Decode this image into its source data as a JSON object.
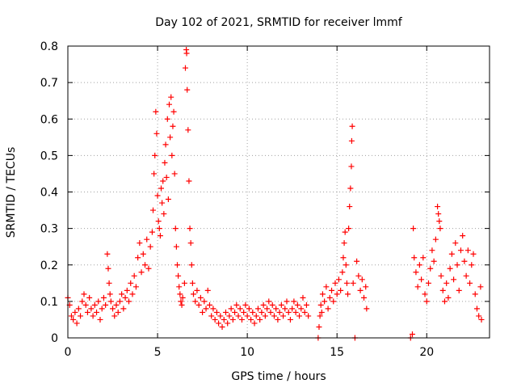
{
  "chart_data": {
    "type": "scatter",
    "title": "Day 102 of 2021, SRMTID for receiver lmmf",
    "xlabel": "GPS time / hours",
    "ylabel": "SRMTID / TECUs",
    "xlim": [
      0,
      23.5
    ],
    "ylim": [
      0,
      0.8
    ],
    "xticks": [
      0,
      5,
      10,
      15,
      20
    ],
    "yticks": [
      0,
      0.1,
      0.2,
      0.3,
      0.4,
      0.5,
      0.6,
      0.7,
      0.8
    ],
    "grid": true,
    "marker": "+",
    "color": "#ff0000",
    "series": [
      {
        "name": "SRMTID",
        "points": [
          [
            0.0,
            0.11
          ],
          [
            0.1,
            0.09
          ],
          [
            0.2,
            0.06
          ],
          [
            0.3,
            0.05
          ],
          [
            0.4,
            0.07
          ],
          [
            0.5,
            0.04
          ],
          [
            0.6,
            0.08
          ],
          [
            0.7,
            0.06
          ],
          [
            0.8,
            0.1
          ],
          [
            0.9,
            0.12
          ],
          [
            1.0,
            0.09
          ],
          [
            1.1,
            0.07
          ],
          [
            1.2,
            0.11
          ],
          [
            1.3,
            0.08
          ],
          [
            1.4,
            0.06
          ],
          [
            1.5,
            0.09
          ],
          [
            1.6,
            0.07
          ],
          [
            1.7,
            0.1
          ],
          [
            1.8,
            0.05
          ],
          [
            1.9,
            0.08
          ],
          [
            2.0,
            0.11
          ],
          [
            2.1,
            0.09
          ],
          [
            2.2,
            0.23
          ],
          [
            2.25,
            0.19
          ],
          [
            2.3,
            0.15
          ],
          [
            2.35,
            0.12
          ],
          [
            2.4,
            0.1
          ],
          [
            2.5,
            0.08
          ],
          [
            2.6,
            0.06
          ],
          [
            2.7,
            0.09
          ],
          [
            2.8,
            0.07
          ],
          [
            2.9,
            0.1
          ],
          [
            3.0,
            0.12
          ],
          [
            3.1,
            0.08
          ],
          [
            3.2,
            0.11
          ],
          [
            3.3,
            0.13
          ],
          [
            3.4,
            0.1
          ],
          [
            3.5,
            0.15
          ],
          [
            3.6,
            0.12
          ],
          [
            3.7,
            0.17
          ],
          [
            3.8,
            0.14
          ],
          [
            3.9,
            0.22
          ],
          [
            4.0,
            0.26
          ],
          [
            4.1,
            0.18
          ],
          [
            4.2,
            0.23
          ],
          [
            4.3,
            0.2
          ],
          [
            4.4,
            0.27
          ],
          [
            4.5,
            0.19
          ],
          [
            4.6,
            0.25
          ],
          [
            4.7,
            0.29
          ],
          [
            4.75,
            0.35
          ],
          [
            4.8,
            0.45
          ],
          [
            4.85,
            0.5
          ],
          [
            4.9,
            0.62
          ],
          [
            4.95,
            0.56
          ],
          [
            5.0,
            0.39
          ],
          [
            5.05,
            0.32
          ],
          [
            5.1,
            0.3
          ],
          [
            5.15,
            0.28
          ],
          [
            5.2,
            0.41
          ],
          [
            5.25,
            0.37
          ],
          [
            5.3,
            0.43
          ],
          [
            5.35,
            0.34
          ],
          [
            5.4,
            0.48
          ],
          [
            5.45,
            0.53
          ],
          [
            5.5,
            0.44
          ],
          [
            5.55,
            0.6
          ],
          [
            5.6,
            0.38
          ],
          [
            5.65,
            0.64
          ],
          [
            5.7,
            0.55
          ],
          [
            5.75,
            0.66
          ],
          [
            5.8,
            0.5
          ],
          [
            5.85,
            0.58
          ],
          [
            5.9,
            0.62
          ],
          [
            5.95,
            0.45
          ],
          [
            6.0,
            0.3
          ],
          [
            6.05,
            0.25
          ],
          [
            6.1,
            0.2
          ],
          [
            6.15,
            0.17
          ],
          [
            6.2,
            0.14
          ],
          [
            6.25,
            0.12
          ],
          [
            6.3,
            0.1
          ],
          [
            6.35,
            0.09
          ],
          [
            6.4,
            0.11
          ],
          [
            6.5,
            0.15
          ],
          [
            6.55,
            0.74
          ],
          [
            6.6,
            0.79
          ],
          [
            6.62,
            0.78
          ],
          [
            6.65,
            0.68
          ],
          [
            6.7,
            0.57
          ],
          [
            6.75,
            0.43
          ],
          [
            6.8,
            0.3
          ],
          [
            6.85,
            0.26
          ],
          [
            6.9,
            0.2
          ],
          [
            6.95,
            0.15
          ],
          [
            7.0,
            0.12
          ],
          [
            7.1,
            0.1
          ],
          [
            7.2,
            0.13
          ],
          [
            7.3,
            0.09
          ],
          [
            7.4,
            0.11
          ],
          [
            7.5,
            0.07
          ],
          [
            7.6,
            0.1
          ],
          [
            7.7,
            0.08
          ],
          [
            7.8,
            0.13
          ],
          [
            7.9,
            0.09
          ],
          [
            8.0,
            0.06
          ],
          [
            8.1,
            0.08
          ],
          [
            8.2,
            0.05
          ],
          [
            8.3,
            0.07
          ],
          [
            8.4,
            0.04
          ],
          [
            8.5,
            0.06
          ],
          [
            8.6,
            0.03
          ],
          [
            8.7,
            0.05
          ],
          [
            8.8,
            0.07
          ],
          [
            8.9,
            0.04
          ],
          [
            9.0,
            0.06
          ],
          [
            9.1,
            0.08
          ],
          [
            9.2,
            0.05
          ],
          [
            9.3,
            0.07
          ],
          [
            9.4,
            0.09
          ],
          [
            9.5,
            0.06
          ],
          [
            9.6,
            0.08
          ],
          [
            9.7,
            0.05
          ],
          [
            9.8,
            0.07
          ],
          [
            9.9,
            0.09
          ],
          [
            10.0,
            0.06
          ],
          [
            10.1,
            0.08
          ],
          [
            10.2,
            0.05
          ],
          [
            10.3,
            0.07
          ],
          [
            10.4,
            0.04
          ],
          [
            10.5,
            0.06
          ],
          [
            10.6,
            0.08
          ],
          [
            10.7,
            0.05
          ],
          [
            10.8,
            0.07
          ],
          [
            10.9,
            0.09
          ],
          [
            11.0,
            0.06
          ],
          [
            11.1,
            0.08
          ],
          [
            11.2,
            0.1
          ],
          [
            11.3,
            0.07
          ],
          [
            11.4,
            0.09
          ],
          [
            11.5,
            0.06
          ],
          [
            11.6,
            0.08
          ],
          [
            11.7,
            0.05
          ],
          [
            11.8,
            0.07
          ],
          [
            11.9,
            0.09
          ],
          [
            12.0,
            0.06
          ],
          [
            12.1,
            0.08
          ],
          [
            12.2,
            0.1
          ],
          [
            12.3,
            0.07
          ],
          [
            12.4,
            0.05
          ],
          [
            12.5,
            0.08
          ],
          [
            12.6,
            0.1
          ],
          [
            12.7,
            0.07
          ],
          [
            12.8,
            0.09
          ],
          [
            12.9,
            0.06
          ],
          [
            13.0,
            0.08
          ],
          [
            13.1,
            0.11
          ],
          [
            13.2,
            0.07
          ],
          [
            13.3,
            0.09
          ],
          [
            13.4,
            0.06
          ],
          [
            13.95,
            0.0
          ],
          [
            14.0,
            0.03
          ],
          [
            14.05,
            0.06
          ],
          [
            14.1,
            0.09
          ],
          [
            14.15,
            0.07
          ],
          [
            14.2,
            0.12
          ],
          [
            14.3,
            0.1
          ],
          [
            14.4,
            0.14
          ],
          [
            14.5,
            0.08
          ],
          [
            14.6,
            0.11
          ],
          [
            14.7,
            0.13
          ],
          [
            14.8,
            0.1
          ],
          [
            14.9,
            0.15
          ],
          [
            15.0,
            0.12
          ],
          [
            15.1,
            0.16
          ],
          [
            15.2,
            0.13
          ],
          [
            15.3,
            0.18
          ],
          [
            15.35,
            0.22
          ],
          [
            15.4,
            0.26
          ],
          [
            15.45,
            0.29
          ],
          [
            15.5,
            0.2
          ],
          [
            15.55,
            0.15
          ],
          [
            15.6,
            0.12
          ],
          [
            15.65,
            0.3
          ],
          [
            15.7,
            0.36
          ],
          [
            15.75,
            0.41
          ],
          [
            15.8,
            0.47
          ],
          [
            15.82,
            0.54
          ],
          [
            15.85,
            0.58
          ],
          [
            15.9,
            0.15
          ],
          [
            16.0,
            0.0
          ],
          [
            16.1,
            0.21
          ],
          [
            16.2,
            0.17
          ],
          [
            16.3,
            0.13
          ],
          [
            16.4,
            0.16
          ],
          [
            16.5,
            0.11
          ],
          [
            16.6,
            0.14
          ],
          [
            16.65,
            0.08
          ],
          [
            19.1,
            0.0
          ],
          [
            19.2,
            0.01
          ],
          [
            19.25,
            0.3
          ],
          [
            19.3,
            0.22
          ],
          [
            19.4,
            0.18
          ],
          [
            19.5,
            0.14
          ],
          [
            19.6,
            0.2
          ],
          [
            19.7,
            0.16
          ],
          [
            19.8,
            0.22
          ],
          [
            19.9,
            0.12
          ],
          [
            20.0,
            0.1
          ],
          [
            20.1,
            0.15
          ],
          [
            20.2,
            0.19
          ],
          [
            20.3,
            0.24
          ],
          [
            20.4,
            0.21
          ],
          [
            20.5,
            0.27
          ],
          [
            20.6,
            0.36
          ],
          [
            20.65,
            0.34
          ],
          [
            20.7,
            0.32
          ],
          [
            20.75,
            0.3
          ],
          [
            20.8,
            0.17
          ],
          [
            20.9,
            0.13
          ],
          [
            21.0,
            0.1
          ],
          [
            21.1,
            0.15
          ],
          [
            21.2,
            0.11
          ],
          [
            21.3,
            0.19
          ],
          [
            21.4,
            0.23
          ],
          [
            21.5,
            0.16
          ],
          [
            21.6,
            0.26
          ],
          [
            21.7,
            0.2
          ],
          [
            21.8,
            0.13
          ],
          [
            21.9,
            0.24
          ],
          [
            22.0,
            0.28
          ],
          [
            22.1,
            0.21
          ],
          [
            22.2,
            0.17
          ],
          [
            22.3,
            0.24
          ],
          [
            22.4,
            0.15
          ],
          [
            22.5,
            0.2
          ],
          [
            22.6,
            0.23
          ],
          [
            22.7,
            0.12
          ],
          [
            22.8,
            0.08
          ],
          [
            22.9,
            0.06
          ],
          [
            23.0,
            0.14
          ],
          [
            23.05,
            0.05
          ]
        ]
      }
    ]
  }
}
